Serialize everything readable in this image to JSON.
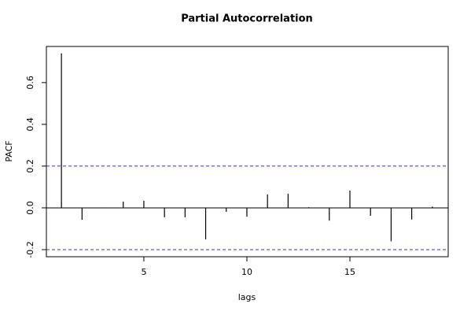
{
  "chart_data": {
    "type": "spike",
    "title": "Partial Autocorrelation",
    "x_label": "lags",
    "y_label": "PACF",
    "x": [
      1,
      2,
      3,
      4,
      5,
      6,
      7,
      8,
      9,
      10,
      11,
      12,
      13,
      14,
      15,
      16,
      17,
      18,
      19
    ],
    "values": [
      0.74,
      -0.057,
      0.002,
      0.03,
      0.034,
      -0.045,
      -0.045,
      -0.151,
      -0.019,
      -0.042,
      0.064,
      0.068,
      0.003,
      -0.061,
      0.083,
      -0.038,
      -0.16,
      -0.056,
      0.006
    ],
    "color": "#000000",
    "confidence_bounds": [
      0.2,
      -0.2
    ],
    "confidence_color": "#3333cc",
    "xlim": [
      0.27,
      19.77
    ],
    "xticks": [
      5,
      10,
      15
    ],
    "ylim": [
      -0.234,
      0.773
    ],
    "yticks": [
      -0.2,
      {
        "value": 0,
        "label": "0.0"
      },
      0.2,
      0.4,
      0.6
    ]
  }
}
